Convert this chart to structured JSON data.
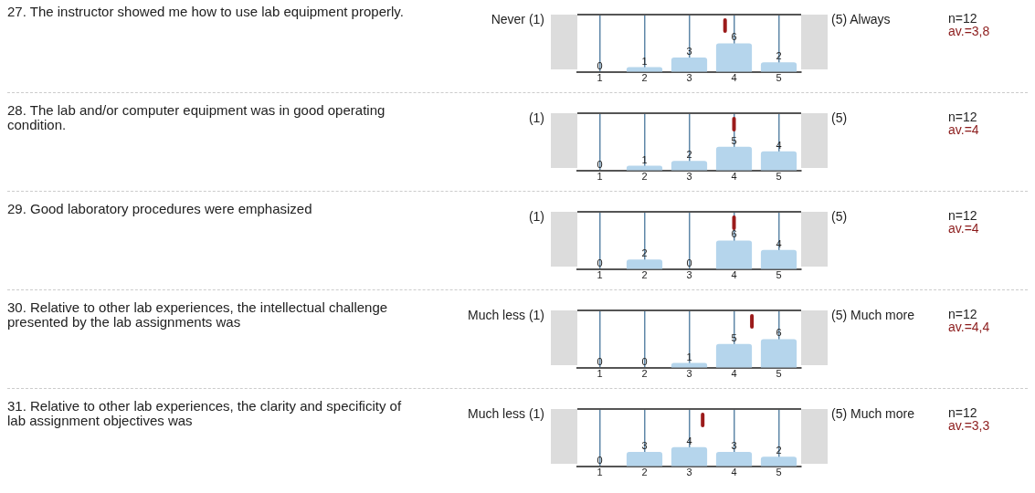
{
  "chart_data": [
    {
      "type": "bar",
      "x": [
        1,
        2,
        3,
        4,
        5
      ],
      "values": [
        0,
        1,
        3,
        6,
        2
      ],
      "color": "#b5d5ec",
      "xlim": [
        0.5,
        5.5
      ],
      "xticks": [
        1,
        2,
        3,
        4,
        5
      ],
      "ylim": [
        0,
        12
      ],
      "tick_labels": "x",
      "grid": "x",
      "data_labels": true,
      "legend": false,
      "ref_lines": [
        {
          "axis": "x",
          "value": 3.8,
          "color": "#9b1b1b"
        }
      ],
      "annotations": [
        "27. The instructor showed me how to use lab equipment properly.",
        "Never (1)",
        "(5) Always",
        "n=12",
        "av.=3,8"
      ]
    },
    {
      "type": "bar",
      "x": [
        1,
        2,
        3,
        4,
        5
      ],
      "values": [
        0,
        1,
        2,
        5,
        4
      ],
      "color": "#b5d5ec",
      "xlim": [
        0.5,
        5.5
      ],
      "xticks": [
        1,
        2,
        3,
        4,
        5
      ],
      "ylim": [
        0,
        12
      ],
      "tick_labels": "x",
      "grid": "x",
      "data_labels": true,
      "legend": false,
      "ref_lines": [
        {
          "axis": "x",
          "value": 4,
          "color": "#9b1b1b"
        }
      ],
      "annotations": [
        "28. The lab and/or computer equipment was in good operating condition.",
        "(1)",
        "(5)",
        "n=12",
        "av.=4"
      ]
    },
    {
      "type": "bar",
      "x": [
        1,
        2,
        3,
        4,
        5
      ],
      "values": [
        0,
        2,
        0,
        6,
        4
      ],
      "color": "#b5d5ec",
      "xlim": [
        0.5,
        5.5
      ],
      "xticks": [
        1,
        2,
        3,
        4,
        5
      ],
      "ylim": [
        0,
        12
      ],
      "tick_labels": "x",
      "grid": "x",
      "data_labels": true,
      "legend": false,
      "ref_lines": [
        {
          "axis": "x",
          "value": 4,
          "color": "#9b1b1b"
        }
      ],
      "annotations": [
        "29. Good laboratory procedures were emphasized",
        "(1)",
        "(5)",
        "n=12",
        "av.=4"
      ]
    },
    {
      "type": "bar",
      "x": [
        1,
        2,
        3,
        4,
        5
      ],
      "values": [
        0,
        0,
        1,
        5,
        6
      ],
      "color": "#b5d5ec",
      "xlim": [
        0.5,
        5.5
      ],
      "xticks": [
        1,
        2,
        3,
        4,
        5
      ],
      "ylim": [
        0,
        12
      ],
      "tick_labels": "x",
      "grid": "x",
      "data_labels": true,
      "legend": false,
      "ref_lines": [
        {
          "axis": "x",
          "value": 4.4,
          "color": "#9b1b1b"
        }
      ],
      "annotations": [
        "30. Relative to other lab experiences, the intellectual challenge presented by the lab assignments was",
        "Much less (1)",
        "(5) Much more",
        "n=12",
        "av.=4,4"
      ]
    },
    {
      "type": "bar",
      "x": [
        1,
        2,
        3,
        4,
        5
      ],
      "values": [
        0,
        3,
        4,
        3,
        2
      ],
      "color": "#b5d5ec",
      "xlim": [
        0.5,
        5.5
      ],
      "xticks": [
        1,
        2,
        3,
        4,
        5
      ],
      "ylim": [
        0,
        12
      ],
      "tick_labels": "x",
      "grid": "x",
      "data_labels": true,
      "legend": false,
      "ref_lines": [
        {
          "axis": "x",
          "value": 3.3,
          "color": "#9b1b1b"
        }
      ],
      "annotations": [
        "31. Relative to other lab experiences, the clarity and specificity of lab assignment objectives was",
        "Much less (1)",
        "(5) Much more",
        "n=12",
        "av.=3,3"
      ]
    }
  ]
}
